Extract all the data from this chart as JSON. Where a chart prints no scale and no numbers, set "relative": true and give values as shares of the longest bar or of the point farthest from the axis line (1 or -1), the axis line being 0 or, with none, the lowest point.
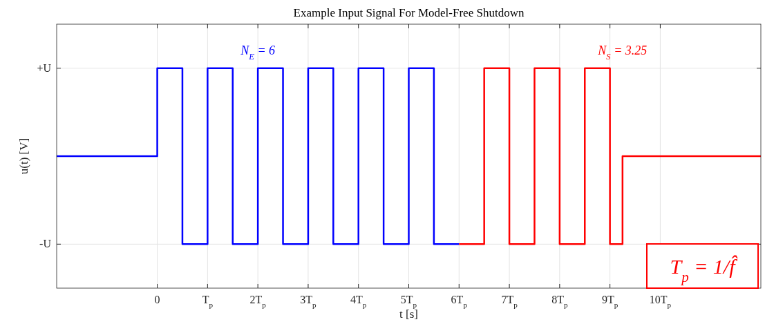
{
  "chart_data": {
    "type": "step",
    "title": "Example Input Signal For Model-Free Shutdown",
    "xlabel": "t [s]",
    "ylabel": "u(t) [V]",
    "series": [
      {
        "color": "#0000ff",
        "x": [
          -2,
          0,
          0.5,
          1,
          1.5,
          2,
          2.5,
          3,
          3.5,
          4,
          4.5,
          5,
          5.5,
          6
        ],
        "values": [
          0.5,
          1,
          0,
          1,
          0,
          1,
          0,
          1,
          0,
          1,
          0,
          1,
          0,
          0
        ]
      },
      {
        "color": "#ff0000",
        "x": [
          6,
          6.5,
          7,
          7.5,
          8,
          8.5,
          9,
          9.25,
          12
        ],
        "values": [
          0,
          1,
          0,
          1,
          0,
          1,
          0,
          0.5,
          0.5
        ]
      }
    ],
    "xlim": [
      -2,
      12
    ],
    "relative": true,
    "xticks": [
      0,
      {
        "value": 1,
        "label": "T$_{p}$"
      },
      {
        "value": 2,
        "label": "2T$_{p}$"
      },
      {
        "value": 3,
        "label": "3T$_{p}$"
      },
      {
        "value": 4,
        "label": "4T$_{p}$"
      },
      {
        "value": 5,
        "label": "5T$_{p}$"
      },
      {
        "value": 6,
        "label": "6T$_{p}$"
      },
      {
        "value": 7,
        "label": "7T$_{p}$"
      },
      {
        "value": 8,
        "label": "8T$_{p}$"
      },
      {
        "value": 9,
        "label": "9T$_{p}$"
      },
      {
        "value": 10,
        "label": "10T$_{p}$"
      }
    ],
    "grid": true,
    "line_style": "solid",
    "marker": "none",
    "annotations": [
      "N$_{E}$ = 6",
      "N$_{S}$ = 3.25",
      "T$_{p}$ = 1/f̂",
      "+U",
      "-U"
    ]
  }
}
